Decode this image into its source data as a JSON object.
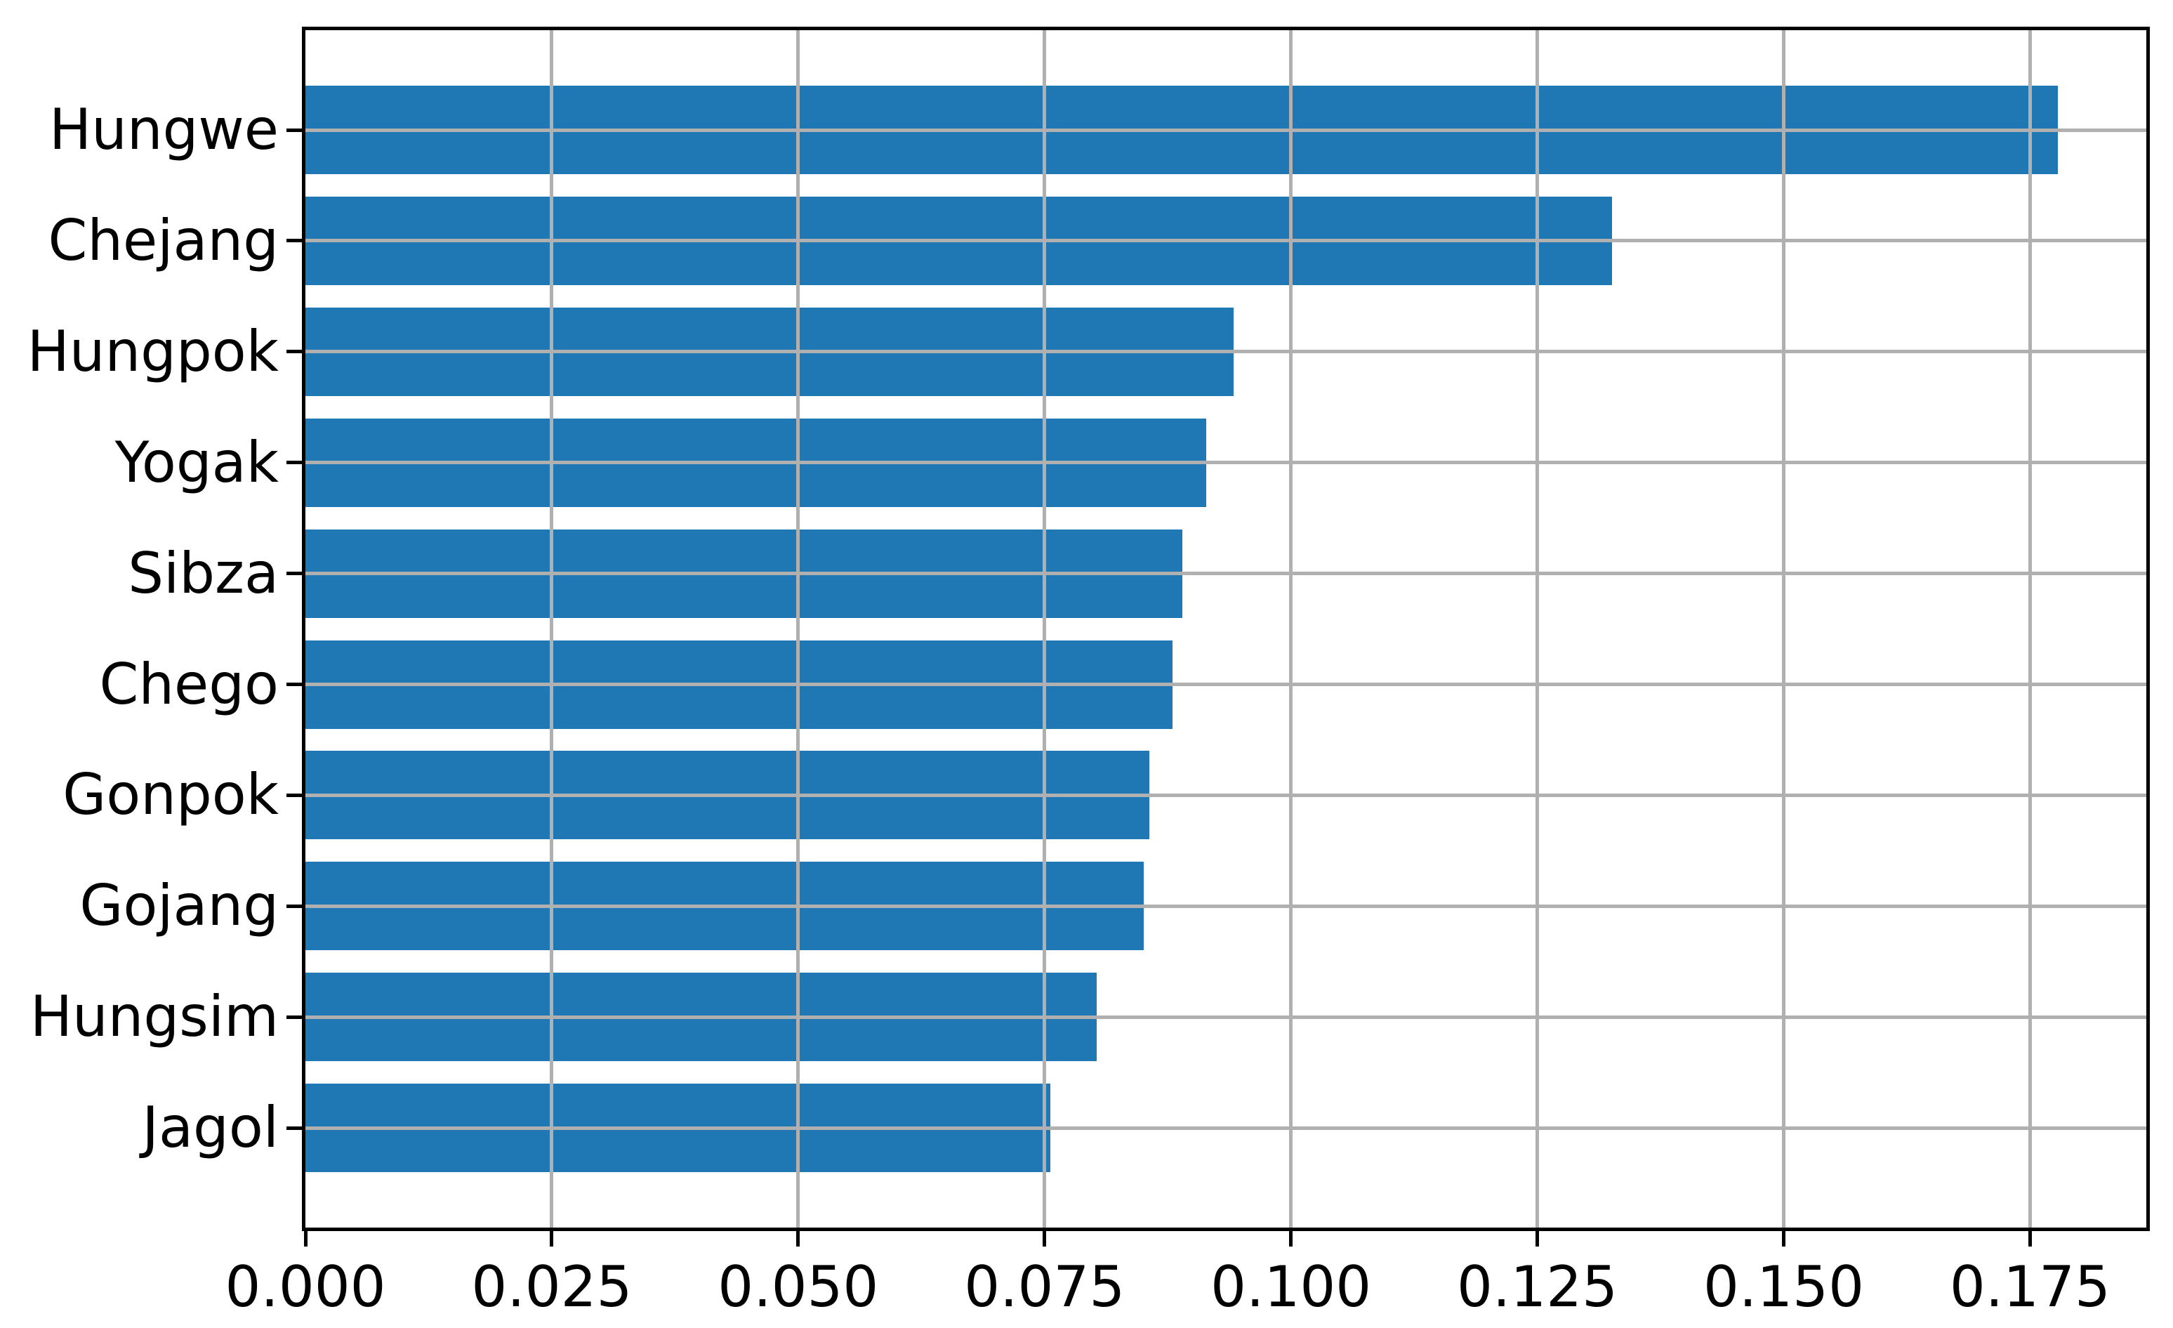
{
  "chart_data": {
    "type": "bar",
    "orientation": "horizontal",
    "title": "",
    "xlabel": "",
    "ylabel": "",
    "categories": [
      "Hungwe",
      "Chejang",
      "Hungpok",
      "Yogak",
      "Sibza",
      "Chego",
      "Gonpok",
      "Gojang",
      "Hungsim",
      "Jagol"
    ],
    "values": [
      0.1778,
      0.1326,
      0.0942,
      0.0914,
      0.089,
      0.088,
      0.0856,
      0.0851,
      0.0803,
      0.0756
    ],
    "xlim": [
      0,
      0.1868
    ],
    "x_ticks": [
      0.0,
      0.025,
      0.05,
      0.075,
      0.1,
      0.125,
      0.15,
      0.175
    ],
    "x_tick_labels": [
      "0.000",
      "0.025",
      "0.050",
      "0.075",
      "0.100",
      "0.125",
      "0.150",
      "0.175"
    ],
    "grid": true,
    "grid_above_bars": true,
    "legend": false,
    "bar_color": "#1f77b4",
    "grid_color": "#b0b0b0",
    "spine_color": "#000000",
    "text_color": "#000000",
    "background_color": "#ffffff"
  }
}
